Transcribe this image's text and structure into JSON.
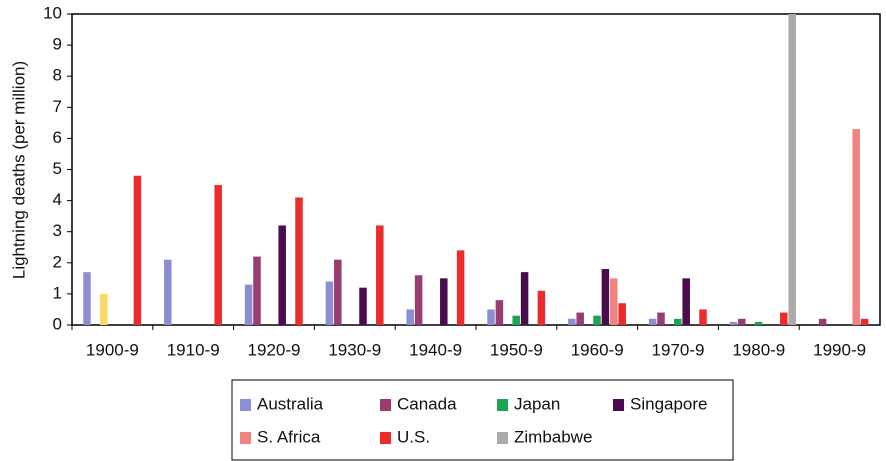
{
  "chart_data": {
    "type": "bar",
    "y_label": "Lightning deaths (per million)",
    "categories": [
      "1900-9",
      "1910-9",
      "1920-9",
      "1930-9",
      "1940-9",
      "1950-9",
      "1960-9",
      "1970-9",
      "1980-9",
      "1990-9"
    ],
    "series": [
      {
        "name": "Australia",
        "color": "#8b8fd1",
        "values": [
          1.7,
          2.1,
          1.3,
          1.4,
          0.5,
          0.5,
          0.2,
          0.2,
          0.1,
          null
        ]
      },
      {
        "name": "Canada",
        "color": "#993d71",
        "values": [
          null,
          null,
          2.2,
          2.1,
          1.6,
          0.8,
          0.4,
          0.4,
          0.2,
          0.2
        ]
      },
      {
        "color": "#fbd966",
        "values": [
          1.0,
          null,
          null,
          null,
          null,
          null,
          null,
          null,
          null,
          null
        ]
      },
      {
        "name": "Japan",
        "color": "#1ba552",
        "values": [
          null,
          null,
          null,
          null,
          null,
          0.3,
          0.3,
          0.2,
          0.1,
          null
        ]
      },
      {
        "name": "Singapore",
        "color": "#4a0b4f",
        "values": [
          null,
          null,
          3.2,
          1.2,
          1.5,
          1.7,
          1.8,
          1.5,
          null,
          null
        ]
      },
      {
        "name": "S. Africa",
        "color": "#f08282",
        "values": [
          null,
          null,
          null,
          null,
          null,
          null,
          1.5,
          null,
          null,
          6.3
        ]
      },
      {
        "name": "U.S.",
        "color": "#ee2b2b",
        "values": [
          4.8,
          4.5,
          4.1,
          3.2,
          2.4,
          1.1,
          0.7,
          0.5,
          0.4,
          0.2
        ]
      },
      {
        "name": "Zimbabwe",
        "color": "#ababab",
        "values": [
          null,
          null,
          null,
          null,
          null,
          null,
          null,
          null,
          10,
          null
        ]
      }
    ],
    "ylim": [
      0,
      10
    ],
    "yticks": [
      0,
      1,
      2,
      3,
      4,
      5,
      6,
      7,
      8,
      9,
      10
    ],
    "grid": false
  }
}
